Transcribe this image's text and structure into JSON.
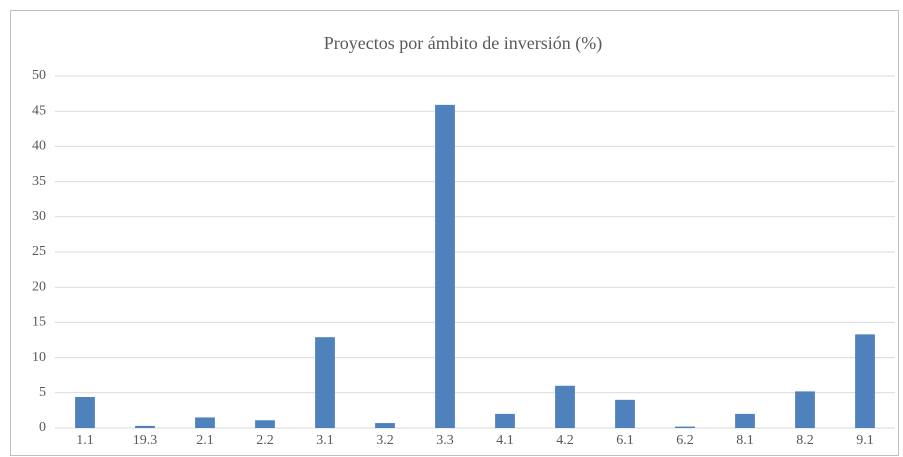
{
  "chart_data": {
    "type": "bar",
    "title": "Proyectos por ámbito de inversión (%)",
    "categories": [
      "1.1",
      "19.3",
      "2.1",
      "2.2",
      "3.1",
      "3.2",
      "3.3",
      "4.1",
      "4.2",
      "6.1",
      "6.2",
      "8.1",
      "8.2",
      "9.1"
    ],
    "values": [
      4.4,
      0.3,
      1.5,
      1.1,
      12.9,
      0.7,
      45.9,
      2.0,
      6.0,
      4.0,
      0.2,
      2.0,
      5.2,
      13.3
    ],
    "color": "#4f81bd",
    "ylim": [
      0,
      50
    ],
    "yticks": [
      0,
      5,
      10,
      15,
      20,
      25,
      30,
      35,
      40,
      45,
      50
    ],
    "grid": true
  }
}
